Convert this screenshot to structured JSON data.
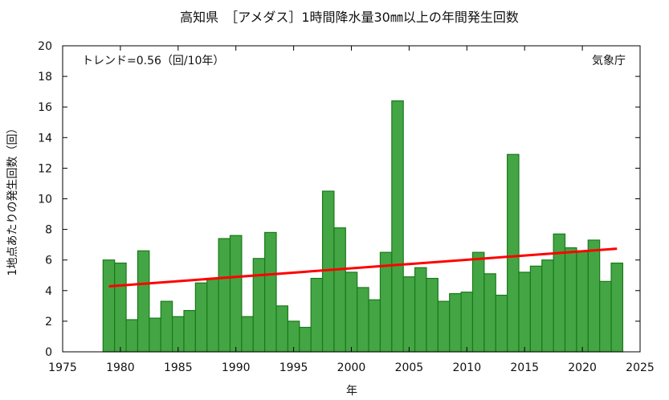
{
  "chart_data": {
    "type": "bar",
    "title": "高知県　［アメダス］1時間降水量30㎜以上の年間発生回数",
    "xlabel": "年",
    "ylabel": "1地点あたりの発生回数（回）",
    "annotation_left": "トレンド=0.56（回/10年）",
    "annotation_right": "気象庁",
    "xlim": [
      1975,
      2025
    ],
    "ylim": [
      0,
      20
    ],
    "xticks": [
      1975,
      1980,
      1985,
      1990,
      1995,
      2000,
      2005,
      2010,
      2015,
      2020,
      2025
    ],
    "yticks": [
      0,
      2,
      4,
      6,
      8,
      10,
      12,
      14,
      16,
      18,
      20
    ],
    "grid": false,
    "categories": [
      1979,
      1980,
      1981,
      1982,
      1983,
      1984,
      1985,
      1986,
      1987,
      1988,
      1989,
      1990,
      1991,
      1992,
      1993,
      1994,
      1995,
      1996,
      1997,
      1998,
      1999,
      2000,
      2001,
      2002,
      2003,
      2004,
      2005,
      2006,
      2007,
      2008,
      2009,
      2010,
      2011,
      2012,
      2013,
      2014,
      2015,
      2016,
      2017,
      2018,
      2019,
      2020,
      2021,
      2022,
      2023
    ],
    "values": [
      6.0,
      5.8,
      2.1,
      6.6,
      2.2,
      3.3,
      2.3,
      2.7,
      4.5,
      4.8,
      7.4,
      7.6,
      2.3,
      6.1,
      7.8,
      3.0,
      2.0,
      1.6,
      4.8,
      10.5,
      8.1,
      5.2,
      4.2,
      3.4,
      6.5,
      16.4,
      4.9,
      5.5,
      4.8,
      3.3,
      3.8,
      3.9,
      6.5,
      5.1,
      3.7,
      12.9,
      5.2,
      5.6,
      6.0,
      7.7,
      6.8,
      6.6,
      7.3,
      4.6,
      5.8
    ],
    "trend": {
      "x": [
        1979,
        2023
      ],
      "y": [
        4.28,
        6.74
      ]
    },
    "colors": {
      "bar_fill": "#44a544",
      "bar_stroke": "#1a7a1a",
      "trend": "#ff0000"
    }
  }
}
